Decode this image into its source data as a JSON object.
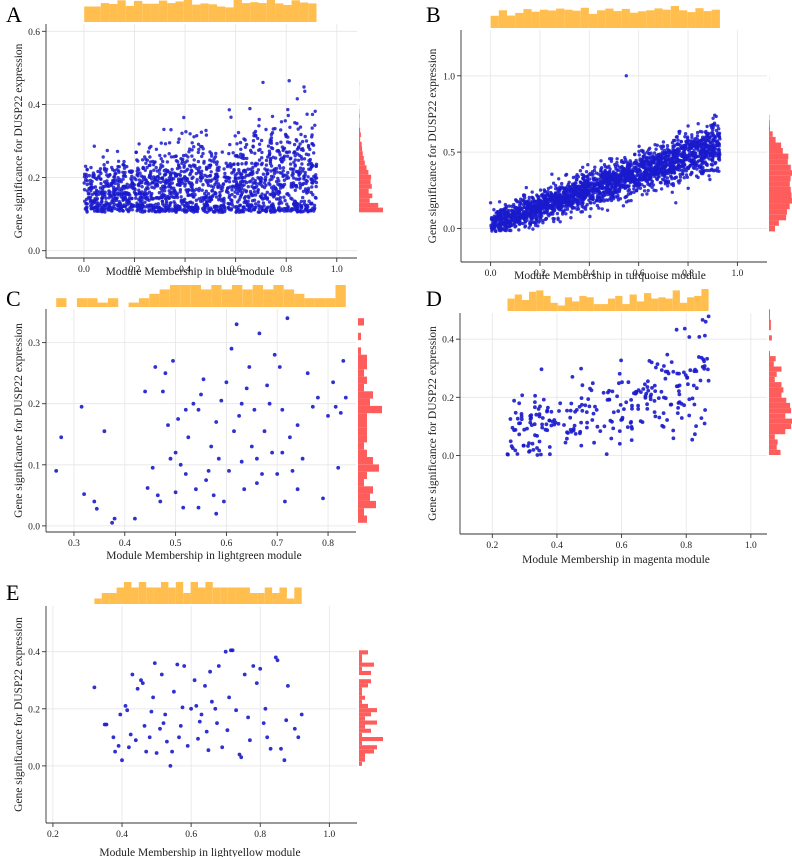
{
  "figure": {
    "ylabel": "Gene significance for DUSP22 expression",
    "colors": {
      "points": "#1a1acc",
      "top_hist": "#ffbe4d",
      "right_hist": "#ff5c5c",
      "grid": "#e6e6e6"
    }
  },
  "chart_data": [
    {
      "panel": "A",
      "type": "scatter",
      "xlabel": "Module Membership in blue module",
      "ylabel": "Gene significance for DUSP22 expression",
      "xlim": [
        -0.15,
        1.08
      ],
      "ylim": [
        -0.02,
        0.62
      ],
      "xticks": [
        "0.0",
        "0.2",
        "0.4",
        "0.6",
        "0.8",
        "1.0"
      ],
      "xtick_values": [
        0,
        0.2,
        0.4,
        0.6,
        0.8,
        1.0
      ],
      "yticks": [
        "0.0",
        "0.2",
        "0.4",
        "0.6"
      ],
      "ytick_values": [
        0,
        0.2,
        0.4,
        0.6
      ],
      "n_points": 1700,
      "x_range": [
        0.0,
        0.92
      ],
      "y_min": 0.105,
      "trend": [
        0.15,
        0.2
      ],
      "spread": 0.065,
      "marginal_histograms": true,
      "grid": true
    },
    {
      "panel": "B",
      "type": "scatter",
      "xlabel": "Module Membership in turquoise module",
      "ylabel": "Gene significance for DUSP22 expression",
      "xlim": [
        -0.12,
        1.12
      ],
      "ylim": [
        -0.22,
        1.3
      ],
      "xticks": [
        "0.0",
        "0.2",
        "0.4",
        "0.6",
        "0.8",
        "1.0"
      ],
      "xtick_values": [
        0,
        0.2,
        0.4,
        0.6,
        0.8,
        1.0
      ],
      "yticks": [
        "0.0",
        "0.5",
        "1.0"
      ],
      "ytick_values": [
        0,
        0.5,
        1.0
      ],
      "n_points": 2400,
      "x_range": [
        0.0,
        0.93
      ],
      "y_min": -0.02,
      "trend": [
        0.03,
        0.55
      ],
      "spread": 0.06,
      "outliers": [
        {
          "x": 0.55,
          "y": 1.0
        }
      ],
      "marginal_histograms": true,
      "grid": true
    },
    {
      "panel": "C",
      "type": "scatter",
      "xlabel": "Module Membership in lightgreen module",
      "ylabel": "Gene significance for DUSP22 expression",
      "xlim": [
        0.245,
        0.855
      ],
      "ylim": [
        -0.01,
        0.355
      ],
      "xticks": [
        "0.3",
        "0.4",
        "0.5",
        "0.6",
        "0.7",
        "0.8"
      ],
      "xtick_values": [
        0.3,
        0.4,
        0.5,
        0.6,
        0.7,
        0.8
      ],
      "yticks": [
        "0.0",
        "0.1",
        "0.2",
        "0.3"
      ],
      "ytick_values": [
        0,
        0.1,
        0.2,
        0.3
      ],
      "points": [
        [
          0.265,
          0.09
        ],
        [
          0.275,
          0.145
        ],
        [
          0.315,
          0.195
        ],
        [
          0.32,
          0.052
        ],
        [
          0.34,
          0.04
        ],
        [
          0.36,
          0.155
        ],
        [
          0.375,
          0.005
        ],
        [
          0.38,
          0.012
        ],
        [
          0.345,
          0.028
        ],
        [
          0.42,
          0.012
        ],
        [
          0.44,
          0.22
        ],
        [
          0.445,
          0.062
        ],
        [
          0.455,
          0.095
        ],
        [
          0.46,
          0.26
        ],
        [
          0.465,
          0.05
        ],
        [
          0.47,
          0.04
        ],
        [
          0.475,
          0.22
        ],
        [
          0.48,
          0.25
        ],
        [
          0.485,
          0.165
        ],
        [
          0.49,
          0.11
        ],
        [
          0.495,
          0.27
        ],
        [
          0.5,
          0.12
        ],
        [
          0.505,
          0.175
        ],
        [
          0.51,
          0.1
        ],
        [
          0.515,
          0.03
        ],
        [
          0.52,
          0.085
        ],
        [
          0.525,
          0.145
        ],
        [
          0.535,
          0.2
        ],
        [
          0.54,
          0.06
        ],
        [
          0.545,
          0.03
        ],
        [
          0.55,
          0.215
        ],
        [
          0.555,
          0.24
        ],
        [
          0.56,
          0.075
        ],
        [
          0.565,
          0.09
        ],
        [
          0.57,
          0.13
        ],
        [
          0.575,
          0.05
        ],
        [
          0.58,
          0.17
        ],
        [
          0.585,
          0.11
        ],
        [
          0.59,
          0.205
        ],
        [
          0.595,
          0.04
        ],
        [
          0.6,
          0.235
        ],
        [
          0.605,
          0.09
        ],
        [
          0.61,
          0.29
        ],
        [
          0.615,
          0.155
        ],
        [
          0.62,
          0.33
        ],
        [
          0.625,
          0.18
        ],
        [
          0.63,
          0.105
        ],
        [
          0.635,
          0.06
        ],
        [
          0.64,
          0.225
        ],
        [
          0.645,
          0.26
        ],
        [
          0.65,
          0.13
        ],
        [
          0.655,
          0.19
        ],
        [
          0.66,
          0.07
        ],
        [
          0.665,
          0.315
        ],
        [
          0.67,
          0.085
        ],
        [
          0.675,
          0.155
        ],
        [
          0.68,
          0.23
        ],
        [
          0.685,
          0.2
        ],
        [
          0.69,
          0.12
        ],
        [
          0.7,
          0.085
        ],
        [
          0.705,
          0.26
        ],
        [
          0.71,
          0.19
        ],
        [
          0.715,
          0.04
        ],
        [
          0.72,
          0.34
        ],
        [
          0.725,
          0.145
        ],
        [
          0.73,
          0.09
        ],
        [
          0.74,
          0.165
        ],
        [
          0.75,
          0.11
        ],
        [
          0.76,
          0.25
        ],
        [
          0.77,
          0.195
        ],
        [
          0.78,
          0.21
        ],
        [
          0.79,
          0.045
        ],
        [
          0.8,
          0.18
        ],
        [
          0.81,
          0.235
        ],
        [
          0.815,
          0.195
        ],
        [
          0.82,
          0.095
        ],
        [
          0.825,
          0.185
        ],
        [
          0.83,
          0.27
        ],
        [
          0.835,
          0.21
        ],
        [
          0.545,
          0.19
        ],
        [
          0.58,
          0.02
        ],
        [
          0.66,
          0.11
        ],
        [
          0.695,
          0.28
        ],
        [
          0.63,
          0.2
        ],
        [
          0.71,
          0.12
        ],
        [
          0.5,
          0.055
        ],
        [
          0.52,
          0.19
        ],
        [
          0.74,
          0.06
        ]
      ],
      "marginal_histograms": true,
      "grid": true
    },
    {
      "panel": "D",
      "type": "scatter",
      "xlabel": "Module Membership in magenta module",
      "ylabel": "Gene significance for DUSP22 expression",
      "xlim": [
        0.1,
        1.05
      ],
      "ylim": [
        -0.27,
        0.49
      ],
      "xticks": [
        "0.2",
        "0.4",
        "0.6",
        "0.8",
        "1.0"
      ],
      "xtick_values": [
        0.2,
        0.4,
        0.6,
        0.8,
        1.0
      ],
      "yticks": [
        "0.0",
        "0.2",
        "0.4"
      ],
      "ytick_values": [
        0,
        0.2,
        0.4
      ],
      "n_points": 270,
      "x_range": [
        0.24,
        0.87
      ],
      "y_min": 0.0,
      "trend": [
        0.06,
        0.27
      ],
      "spread": 0.07,
      "marginal_histograms": true,
      "grid": true
    },
    {
      "panel": "E",
      "type": "scatter",
      "xlabel": "Module Membership in lightyellow module",
      "ylabel": "Gene significance for DUSP22 expression",
      "xlim": [
        0.18,
        1.08
      ],
      "ylim": [
        -0.2,
        0.56
      ],
      "xticks": [
        "0.2",
        "0.4",
        "0.6",
        "0.8",
        "1.0"
      ],
      "xtick_values": [
        0.2,
        0.4,
        0.6,
        0.8,
        1.0
      ],
      "yticks": [
        "0.0",
        "0.2",
        "0.4"
      ],
      "ytick_values": [
        0,
        0.2,
        0.4
      ],
      "points": [
        [
          0.32,
          0.275
        ],
        [
          0.35,
          0.145
        ],
        [
          0.355,
          0.145
        ],
        [
          0.375,
          0.1
        ],
        [
          0.38,
          0.05
        ],
        [
          0.39,
          0.07
        ],
        [
          0.395,
          0.18
        ],
        [
          0.4,
          0.02
        ],
        [
          0.41,
          0.21
        ],
        [
          0.415,
          0.195
        ],
        [
          0.42,
          0.065
        ],
        [
          0.425,
          0.11
        ],
        [
          0.43,
          0.32
        ],
        [
          0.44,
          0.09
        ],
        [
          0.445,
          0.27
        ],
        [
          0.455,
          0.3
        ],
        [
          0.46,
          0.29
        ],
        [
          0.465,
          0.14
        ],
        [
          0.47,
          0.05
        ],
        [
          0.48,
          0.1
        ],
        [
          0.485,
          0.19
        ],
        [
          0.49,
          0.24
        ],
        [
          0.495,
          0.36
        ],
        [
          0.5,
          0.045
        ],
        [
          0.51,
          0.13
        ],
        [
          0.515,
          0.32
        ],
        [
          0.52,
          0.15
        ],
        [
          0.525,
          0.18
        ],
        [
          0.53,
          0.085
        ],
        [
          0.54,
          0.0
        ],
        [
          0.545,
          0.05
        ],
        [
          0.55,
          0.26
        ],
        [
          0.56,
          0.355
        ],
        [
          0.565,
          0.1
        ],
        [
          0.57,
          0.14
        ],
        [
          0.575,
          0.205
        ],
        [
          0.58,
          0.35
        ],
        [
          0.59,
          0.07
        ],
        [
          0.6,
          0.2
        ],
        [
          0.61,
          0.3
        ],
        [
          0.615,
          0.21
        ],
        [
          0.62,
          0.095
        ],
        [
          0.625,
          0.155
        ],
        [
          0.63,
          0.18
        ],
        [
          0.64,
          0.28
        ],
        [
          0.645,
          0.12
        ],
        [
          0.65,
          0.055
        ],
        [
          0.655,
          0.33
        ],
        [
          0.66,
          0.225
        ],
        [
          0.67,
          0.2
        ],
        [
          0.675,
          0.15
        ],
        [
          0.68,
          0.35
        ],
        [
          0.69,
          0.065
        ],
        [
          0.7,
          0.4
        ],
        [
          0.705,
          0.125
        ],
        [
          0.71,
          0.24
        ],
        [
          0.715,
          0.405
        ],
        [
          0.72,
          0.405
        ],
        [
          0.73,
          0.195
        ],
        [
          0.74,
          0.04
        ],
        [
          0.745,
          0.03
        ],
        [
          0.755,
          0.32
        ],
        [
          0.765,
          0.17
        ],
        [
          0.77,
          0.09
        ],
        [
          0.78,
          0.35
        ],
        [
          0.79,
          0.29
        ],
        [
          0.8,
          0.34
        ],
        [
          0.81,
          0.15
        ],
        [
          0.815,
          0.2
        ],
        [
          0.82,
          0.1
        ],
        [
          0.83,
          0.06
        ],
        [
          0.845,
          0.38
        ],
        [
          0.85,
          0.37
        ],
        [
          0.86,
          0.06
        ],
        [
          0.87,
          0.02
        ],
        [
          0.875,
          0.16
        ],
        [
          0.88,
          0.28
        ],
        [
          0.9,
          0.13
        ],
        [
          0.91,
          0.1
        ],
        [
          0.92,
          0.18
        ]
      ],
      "marginal_histograms": true,
      "grid": true
    }
  ]
}
